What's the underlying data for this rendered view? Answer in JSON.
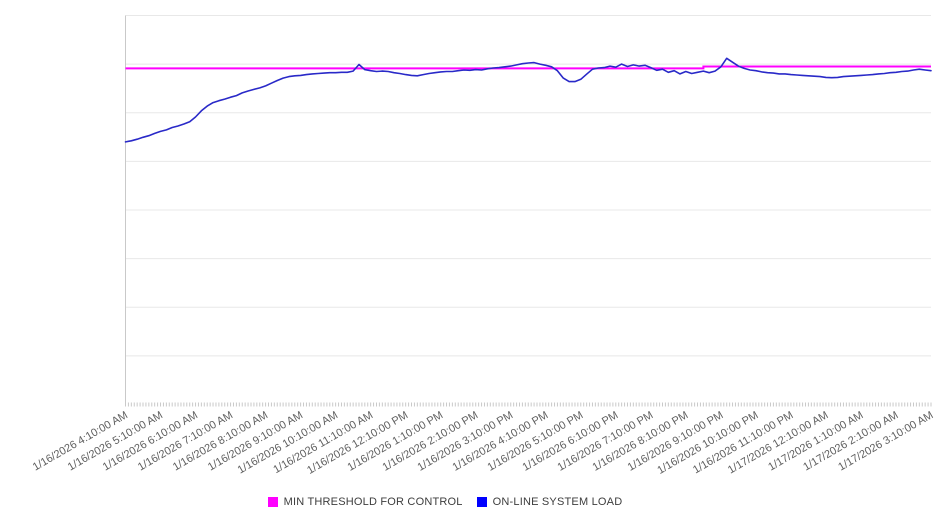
{
  "legend": {
    "items": [
      {
        "label": "MIN THRESHOLD FOR CONTROL",
        "color": "#ff00ff"
      },
      {
        "label": "ON-LINE SYSTEM LOAD",
        "color": "#0000ff"
      }
    ]
  },
  "chart_data": {
    "type": "line",
    "title": "",
    "xlabel": "",
    "ylabel": "",
    "ylim": [
      0,
      100
    ],
    "y_tick_labels": [],
    "x_range_minutes": [
      0,
      1380
    ],
    "x_minor_tick_minutes": 5,
    "grid": {
      "horizontal": true,
      "horizontal_line_count": 8
    },
    "legend_position": "bottom",
    "colors": {
      "gridline": "#e8e8e8",
      "axis_line": "#c9c9c9",
      "axis_text": "#5f5f5f",
      "background": "#ffffff"
    },
    "x_tick_labels": [
      "1/16/2026 4:10:00 AM",
      "1/16/2026 5:10:00 AM",
      "1/16/2026 6:10:00 AM",
      "1/16/2026 7:10:00 AM",
      "1/16/2026 8:10:00 AM",
      "1/16/2026 9:10:00 AM",
      "1/16/2026 10:10:00 AM",
      "1/16/2026 11:10:00 AM",
      "1/16/2026 12:10:00 PM",
      "1/16/2026 1:10:00 PM",
      "1/16/2026 2:10:00 PM",
      "1/16/2026 3:10:00 PM",
      "1/16/2026 4:10:00 PM",
      "1/16/2026 5:10:00 PM",
      "1/16/2026 6:10:00 PM",
      "1/16/2026 7:10:00 PM",
      "1/16/2026 8:10:00 PM",
      "1/16/2026 9:10:00 PM",
      "1/16/2026 10:10:00 PM",
      "1/16/2026 11:10:00 PM",
      "1/17/2026 12:10:00 AM",
      "1/17/2026 1:10:00 AM",
      "1/17/2026 2:10:00 AM",
      "1/17/2026 3:10:00 AM"
    ],
    "series": [
      {
        "name": "MIN THRESHOLD FOR CONTROL",
        "type": "step-line",
        "color": "#ff00ff",
        "stroke_width": 2,
        "segments": [
          {
            "from_minute": 0,
            "to_minute": 990,
            "value": 86.4
          },
          {
            "from_minute": 990,
            "to_minute": 1380,
            "value": 86.9
          }
        ]
      },
      {
        "name": "ON-LINE SYSTEM LOAD",
        "type": "line",
        "color": "#2929c8",
        "stroke_width": 1.6,
        "start_minute": 0,
        "step_minutes": 10,
        "values": [
          67.5,
          67.8,
          68.2,
          68.7,
          69.1,
          69.7,
          70.2,
          70.6,
          71.2,
          71.6,
          72.1,
          72.7,
          73.9,
          75.5,
          76.7,
          77.6,
          78.1,
          78.5,
          79.0,
          79.4,
          80.1,
          80.6,
          81.0,
          81.4,
          81.9,
          82.6,
          83.3,
          83.9,
          84.3,
          84.5,
          84.6,
          84.8,
          85.0,
          85.1,
          85.2,
          85.3,
          85.3,
          85.4,
          85.4,
          85.7,
          87.4,
          86.1,
          85.8,
          85.6,
          85.7,
          85.6,
          85.3,
          85.1,
          84.8,
          84.6,
          84.5,
          84.8,
          85.1,
          85.3,
          85.5,
          85.6,
          85.6,
          85.8,
          86.0,
          85.9,
          86.1,
          86.0,
          86.3,
          86.5,
          86.6,
          86.8,
          87.0,
          87.3,
          87.6,
          87.8,
          87.9,
          87.5,
          87.2,
          86.8,
          85.8,
          83.9,
          83.0,
          83.0,
          83.6,
          84.9,
          86.2,
          86.5,
          86.6,
          87.0,
          86.7,
          87.5,
          86.9,
          87.3,
          87.0,
          87.2,
          86.6,
          85.9,
          86.2,
          85.4,
          85.8,
          85.0,
          85.6,
          85.1,
          85.4,
          85.7,
          85.3,
          85.7,
          86.8,
          89.0,
          88.0,
          87.0,
          86.4,
          86.0,
          85.8,
          85.5,
          85.3,
          85.2,
          85.0,
          85.0,
          84.8,
          84.7,
          84.6,
          84.5,
          84.4,
          84.3,
          84.1,
          84.0,
          84.1,
          84.3,
          84.4,
          84.5,
          84.6,
          84.7,
          84.8,
          85.0,
          85.1,
          85.3,
          85.4,
          85.6,
          85.7,
          86.0,
          86.2,
          86.0,
          85.8
        ]
      }
    ]
  }
}
